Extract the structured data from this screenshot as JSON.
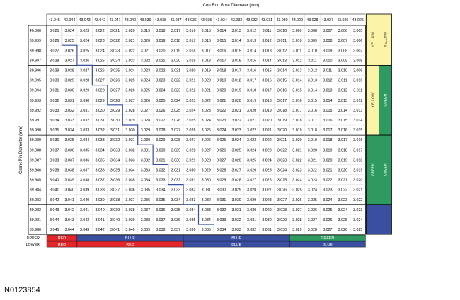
{
  "rod_bore_title": "Con Rod Bore Diameter (mm)",
  "pin_title": "Crank Pin Diameter (mm)",
  "reference_id": "N0123854",
  "columns": [
    "43.045",
    "43.044",
    "43.043",
    "43.042",
    "43.041",
    "43.040",
    "43.039",
    "43.038",
    "43.037",
    "43.036",
    "43.035",
    "43.034",
    "43.033",
    "43.032",
    "43.031",
    "43.030",
    "43.029",
    "43.028",
    "43.027",
    "43.026",
    "43.025"
  ],
  "rows": [
    {
      "pin": "40.000",
      "cells": [
        "3.025",
        "3.024",
        "3.023",
        "3.022",
        "3.021",
        "3.020",
        "3.019",
        "3.018",
        "3.017",
        "3.016",
        "3.015",
        "3.014",
        "3.013",
        "3.012",
        "3.011",
        "3.010",
        "3.009",
        "3.008",
        "3.007",
        "3.006",
        "3.005"
      ]
    },
    {
      "pin": "39.999",
      "cells": [
        "3.026",
        "3.025",
        "3.024",
        "3.023",
        "3.022",
        "3.021",
        "3.020",
        "3.019",
        "3.018",
        "3.017",
        "3.016",
        "3.015",
        "3.014",
        "3.013",
        "3.012",
        "3.011",
        "3.010",
        "3.009",
        "3.008",
        "3.007",
        "3.006"
      ]
    },
    {
      "pin": "39.998",
      "cells": [
        "3.027",
        "3.026",
        "3.025",
        "3.024",
        "3.023",
        "3.022",
        "3.021",
        "3.020",
        "3.019",
        "3.018",
        "3.017",
        "3.016",
        "3.015",
        "3.014",
        "3.013",
        "3.012",
        "3.011",
        "3.010",
        "3.009",
        "3.008",
        "3.007"
      ]
    },
    {
      "pin": "39.997",
      "cells": [
        "3.028",
        "3.027",
        "3.026",
        "3.025",
        "3.024",
        "3.023",
        "3.022",
        "3.021",
        "3.020",
        "3.019",
        "3.018",
        "3.017",
        "3.016",
        "3.015",
        "3.014",
        "3.013",
        "3.012",
        "3.011",
        "3.010",
        "3.009",
        "3.008"
      ]
    },
    {
      "pin": "39.996",
      "cells": [
        "3.029",
        "3.028",
        "3.027",
        "3.026",
        "3.025",
        "3.024",
        "3.023",
        "3.022",
        "3.021",
        "3.020",
        "3.019",
        "3.018",
        "3.017",
        "3.016",
        "3.015",
        "3.014",
        "3.013",
        "3.012",
        "3.011",
        "3.010",
        "3.009"
      ]
    },
    {
      "pin": "39.995",
      "cells": [
        "3.030",
        "3.029",
        "3.028",
        "3.027",
        "3.026",
        "3.025",
        "3.024",
        "3.023",
        "3.022",
        "3.021",
        "3.020",
        "3.019",
        "3.018",
        "3.017",
        "3.016",
        "3.015",
        "3.014",
        "3.013",
        "3.012",
        "3.011",
        "3.010"
      ]
    },
    {
      "pin": "39.994",
      "cells": [
        "3.031",
        "3.030",
        "3.029",
        "3.028",
        "3.027",
        "3.026",
        "3.025",
        "3.024",
        "3.023",
        "3.022",
        "3.021",
        "3.020",
        "3.019",
        "3.018",
        "3.017",
        "3.016",
        "3.015",
        "3.014",
        "3.013",
        "3.012",
        "3.011"
      ]
    },
    {
      "pin": "39.993",
      "cells": [
        "3.032",
        "3.031",
        "3.030",
        "3.029",
        "3.028",
        "3.027",
        "3.026",
        "3.025",
        "3.024",
        "3.023",
        "3.022",
        "3.021",
        "3.020",
        "3.019",
        "3.018",
        "3.017",
        "3.016",
        "3.015",
        "3.014",
        "3.013",
        "3.012"
      ]
    },
    {
      "pin": "39.992",
      "cells": [
        "3.033",
        "3.032",
        "3.031",
        "3.030",
        "3.029",
        "3.028",
        "3.027",
        "3.026",
        "3.025",
        "3.024",
        "3.023",
        "3.022",
        "3.021",
        "3.020",
        "3.019",
        "3.018",
        "3.017",
        "3.016",
        "3.015",
        "3.014",
        "3.013"
      ]
    },
    {
      "pin": "39.991",
      "cells": [
        "3.034",
        "3.033",
        "3.032",
        "3.031",
        "3.030",
        "3.029",
        "3.028",
        "3.027",
        "3.026",
        "3.025",
        "3.024",
        "3.023",
        "3.022",
        "3.021",
        "3.020",
        "3.019",
        "3.018",
        "3.017",
        "3.016",
        "3.015",
        "3.014"
      ]
    },
    {
      "pin": "39.990",
      "cells": [
        "3.035",
        "3.034",
        "3.033",
        "3.032",
        "3.031",
        "3.030",
        "3.029",
        "3.028",
        "3.027",
        "3.026",
        "3.025",
        "3.024",
        "3.023",
        "3.022",
        "3.021",
        "3.020",
        "3.019",
        "3.018",
        "3.017",
        "3.016",
        "3.015"
      ]
    },
    {
      "pin": "39.989",
      "cells": [
        "3.036",
        "3.035",
        "3.034",
        "3.033",
        "3.032",
        "3.031",
        "3.030",
        "3.029",
        "3.028",
        "3.027",
        "3.026",
        "3.025",
        "3.024",
        "3.023",
        "3.022",
        "3.021",
        "3.020",
        "3.019",
        "3.018",
        "3.017",
        "3.016"
      ]
    },
    {
      "pin": "39.988",
      "cells": [
        "3.037",
        "3.036",
        "3.035",
        "3.034",
        "3.033",
        "3.032",
        "3.031",
        "3.030",
        "3.029",
        "3.028",
        "3.027",
        "3.026",
        "3.025",
        "3.024",
        "3.023",
        "3.022",
        "3.021",
        "3.020",
        "3.019",
        "3.018",
        "3.017"
      ]
    },
    {
      "pin": "39.987",
      "cells": [
        "3.038",
        "3.037",
        "3.036",
        "3.035",
        "3.034",
        "3.033",
        "3.032",
        "3.031",
        "3.030",
        "3.029",
        "3.028",
        "3.027",
        "3.026",
        "3.025",
        "3.024",
        "3.023",
        "3.022",
        "3.021",
        "3.020",
        "3.019",
        "3.018"
      ]
    },
    {
      "pin": "39.986",
      "cells": [
        "3.039",
        "3.038",
        "3.037",
        "3.036",
        "3.035",
        "3.034",
        "3.033",
        "3.032",
        "3.031",
        "3.030",
        "3.029",
        "3.028",
        "3.027",
        "3.026",
        "3.025",
        "3.024",
        "3.023",
        "3.022",
        "3.021",
        "3.020",
        "3.019"
      ]
    },
    {
      "pin": "39.985",
      "cells": [
        "3.040",
        "3.039",
        "3.038",
        "3.037",
        "3.036",
        "3.035",
        "3.034",
        "3.033",
        "3.032",
        "3.031",
        "3.030",
        "3.029",
        "3.028",
        "3.027",
        "3.026",
        "3.025",
        "3.024",
        "3.023",
        "3.022",
        "3.021",
        "3.020"
      ]
    },
    {
      "pin": "39.984",
      "cells": [
        "3.041",
        "3.040",
        "3.039",
        "3.038",
        "3.037",
        "3.036",
        "3.035",
        "3.034",
        "3.033",
        "3.032",
        "3.031",
        "3.030",
        "3.029",
        "3.028",
        "3.027",
        "3.026",
        "3.025",
        "3.024",
        "3.023",
        "3.022",
        "3.021"
      ]
    },
    {
      "pin": "39.983",
      "cells": [
        "3.042",
        "3.041",
        "3.040",
        "3.039",
        "3.038",
        "3.037",
        "3.036",
        "3.035",
        "3.034",
        "3.033",
        "3.032",
        "3.031",
        "3.030",
        "3.029",
        "3.028",
        "3.027",
        "3.026",
        "3.025",
        "3.024",
        "3.023",
        "3.022"
      ]
    },
    {
      "pin": "39.982",
      "cells": [
        "3.043",
        "3.042",
        "3.041",
        "3.040",
        "3.039",
        "3.038",
        "3.037",
        "3.036",
        "3.035",
        "3.034",
        "3.033",
        "3.032",
        "3.031",
        "3.030",
        "3.029",
        "3.028",
        "3.027",
        "3.026",
        "3.025",
        "3.024",
        "3.023"
      ]
    },
    {
      "pin": "39.981",
      "cells": [
        "3.044",
        "3.043",
        "3.042",
        "3.041",
        "3.040",
        "3.039",
        "3.038",
        "3.037",
        "3.036",
        "3.035",
        "3.034",
        "3.033",
        "3.032",
        "3.031",
        "3.030",
        "3.029",
        "3.028",
        "3.027",
        "3.026",
        "3.025",
        "3.024"
      ]
    },
    {
      "pin": "39.980",
      "cells": [
        "3.045",
        "3.044",
        "3.043",
        "3.042",
        "3.041",
        "3.040",
        "3.039",
        "3.038",
        "3.037",
        "3.036",
        "3.035",
        "3.034",
        "3.033",
        "3.032",
        "3.031",
        "3.030",
        "3.029",
        "3.028",
        "3.027",
        "3.026",
        "3.025"
      ]
    }
  ],
  "staircase_steps": [
    2,
    4,
    6,
    8,
    10,
    12,
    14,
    16,
    18,
    20
  ],
  "bands": {
    "upper": {
      "label": "UPPER",
      "segments": [
        {
          "text": "RED",
          "color": "#e4262a",
          "from": 0,
          "to": 2
        },
        {
          "text": "BLUE",
          "color": "#3a4fa2",
          "from": 2,
          "to": 9
        },
        {
          "text": "BLUE",
          "color": "#3a4fa2",
          "from": 9,
          "to": 16
        },
        {
          "text": "GREEN",
          "color": "#2f9a60",
          "from": 16,
          "to": 21
        }
      ]
    },
    "lower": {
      "label": "LOWER",
      "segments": [
        {
          "text": "RED",
          "color": "#e4262a",
          "from": 0,
          "to": 2
        },
        {
          "text": "RED",
          "color": "#e4262a",
          "from": 2,
          "to": 9
        },
        {
          "text": "BLUE",
          "color": "#3a4fa2",
          "from": 9,
          "to": 16
        },
        {
          "text": "BLUE",
          "color": "#3a4fa2",
          "from": 16,
          "to": 21
        }
      ]
    }
  },
  "side_columns": {
    "left": [
      {
        "text": "YELLOW",
        "color": "#fbf3a6",
        "text_color": "#333",
        "from": 0,
        "to": 4
      },
      {
        "text": "YELLOW",
        "color": "#fbf3a6",
        "text_color": "#333",
        "from": 4,
        "to": 11
      },
      {
        "text": "GREEN",
        "color": "#2f9a60",
        "text_color": "#fff",
        "from": 11,
        "to": 18
      },
      {
        "text": "",
        "color": "#3a4fa2",
        "text_color": "#fff",
        "from": 18,
        "to": 21
      }
    ],
    "right": [
      {
        "text": "YELLOW",
        "color": "#fbf3a6",
        "text_color": "#333",
        "from": 0,
        "to": 4
      },
      {
        "text": "GREEN",
        "color": "#2f9a60",
        "text_color": "#fff",
        "from": 4,
        "to": 11
      },
      {
        "text": "GREEN",
        "color": "#2f9a60",
        "text_color": "#fff",
        "from": 11,
        "to": 18
      },
      {
        "text": "",
        "color": "#3a4fa2",
        "text_color": "#fff",
        "from": 18,
        "to": 21
      }
    ]
  }
}
